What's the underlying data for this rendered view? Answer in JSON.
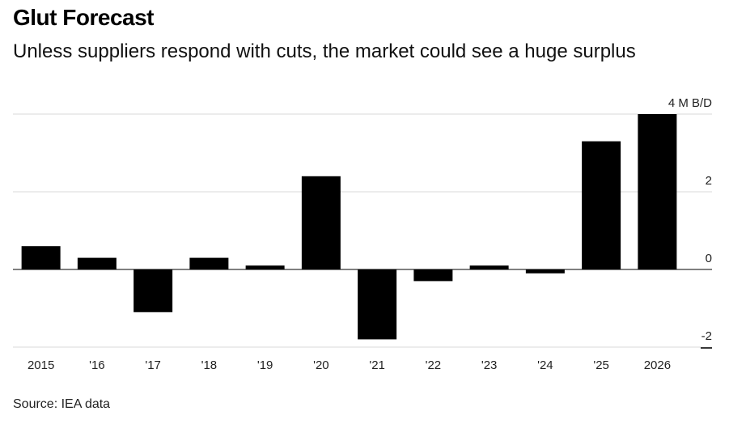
{
  "title": "Glut Forecast",
  "subtitle": "Unless suppliers respond with cuts, the market could see a huge surplus",
  "source": "Source: IEA data",
  "chart_data": {
    "type": "bar",
    "categories": [
      "2015",
      "'16",
      "'17",
      "'18",
      "'19",
      "'20",
      "'21",
      "'22",
      "'23",
      "'24",
      "'25",
      "2026"
    ],
    "values": [
      0.6,
      0.3,
      -1.1,
      0.3,
      0.1,
      2.4,
      -1.8,
      -0.3,
      0.1,
      -0.1,
      3.3,
      4.0
    ],
    "y_ticks": [
      {
        "value": 4,
        "label": "4 M B/D"
      },
      {
        "value": 2,
        "label": "2"
      },
      {
        "value": 0,
        "label": "0"
      },
      {
        "value": -2,
        "label": "-2"
      }
    ],
    "ylim": [
      -2,
      4
    ],
    "unit": "million barrels per day",
    "bar_color": "#000000"
  }
}
